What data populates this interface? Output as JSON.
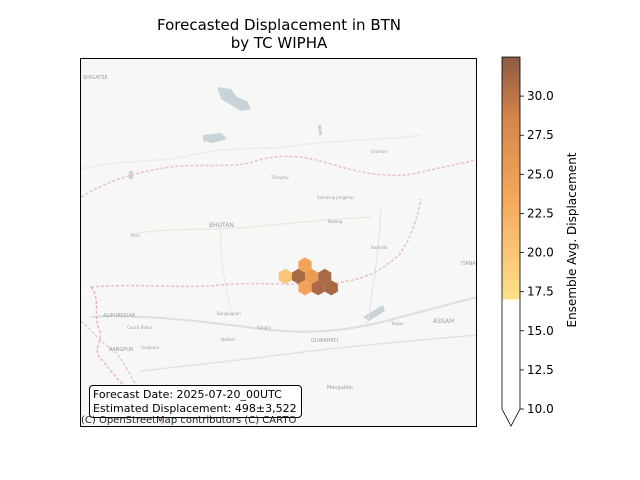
{
  "title_line1": "Forecasted Displacement in BTN",
  "title_line2": "by TC WIPHA",
  "info": {
    "forecast_date": "Forecast Date: 2025-07-20_00UTC",
    "estimated_displacement": "Estimated Displacement: 498±3,522"
  },
  "attribution": "(C) OpenStreetMap contributors (C) CARTO",
  "map_labels": {
    "bhutan": "BHUTAN",
    "assam": "ASSAM",
    "guwahati": "GUWAHATI",
    "alipurduar": "ALIPURDUAR",
    "rangpur": "RANGPUR",
    "itanagar": "ITANA",
    "thimphu": "Thimphu",
    "paro": "Paro",
    "samdrup_jongkhar": "Samdrup Jongkhar",
    "lhuntse": "Lhuntse",
    "rangia": "Rangia",
    "nalbari": "Nalbari",
    "goalpara": "Goalpara",
    "bongaigaon": "Bongaigaon",
    "cooch_behar": "Cooch Behar",
    "tezpur": "Tezpur",
    "mangaldai": "Mangaldai",
    "tawang": "Tawang",
    "bomdila": "Bomdila",
    "shigatse": "SHIGATSE"
  },
  "colors": {
    "low": "#fee08b",
    "mid": "#f4a35a",
    "high": "#d6844a",
    "top": "#8c5a42"
  },
  "colorbar": {
    "label": "Ensemble Avg. Displacement",
    "min": 10.0,
    "max": 32.5,
    "color_start": 17.0,
    "ticks": [
      "10.0",
      "12.5",
      "15.0",
      "17.5",
      "20.0",
      "22.5",
      "25.0",
      "27.5",
      "30.0"
    ],
    "tick_values": [
      10.0,
      12.5,
      15.0,
      17.5,
      20.0,
      22.5,
      25.0,
      27.5,
      30.0
    ]
  },
  "hexbins": [
    {
      "col": 0,
      "row": 0,
      "value": 24
    },
    {
      "col": -1,
      "row": 1,
      "value": 20
    },
    {
      "col": 0,
      "row": 1,
      "value": 31
    },
    {
      "col": 1,
      "row": 1,
      "value": 25
    },
    {
      "col": 2,
      "row": 1,
      "value": 31
    },
    {
      "col": 0,
      "row": 2,
      "value": 24
    },
    {
      "col": 1,
      "row": 2,
      "value": 31
    },
    {
      "col": 2,
      "row": 2,
      "value": 31
    }
  ]
}
